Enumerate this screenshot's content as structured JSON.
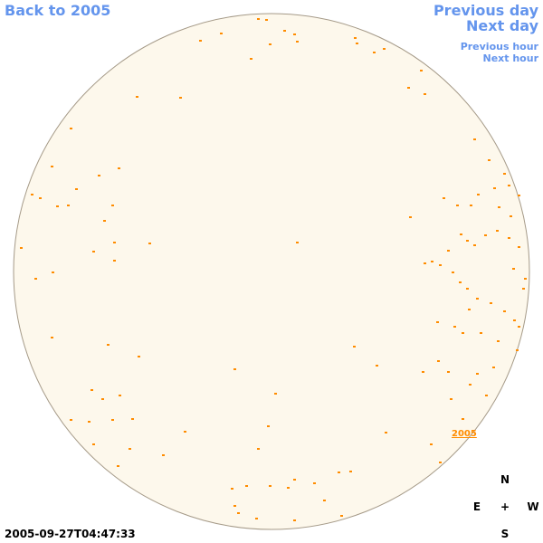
{
  "nav": {
    "back_label": "Back to 2005",
    "prev_day_label": "Previous day",
    "next_day_label": "Next day",
    "prev_hour_label": "Previous hour",
    "next_hour_label": "Next hour"
  },
  "compass": {
    "n": "N",
    "s": "S",
    "e": "E",
    "w": "W",
    "center": "+"
  },
  "timestamp": "2005-09-27T04:47:33",
  "year_label": "2005",
  "colors": {
    "link": "#6495ed",
    "disk_fill": "#fdf8ec",
    "disk_stroke": "#a59a88",
    "marker": "#ff8c00"
  }
}
